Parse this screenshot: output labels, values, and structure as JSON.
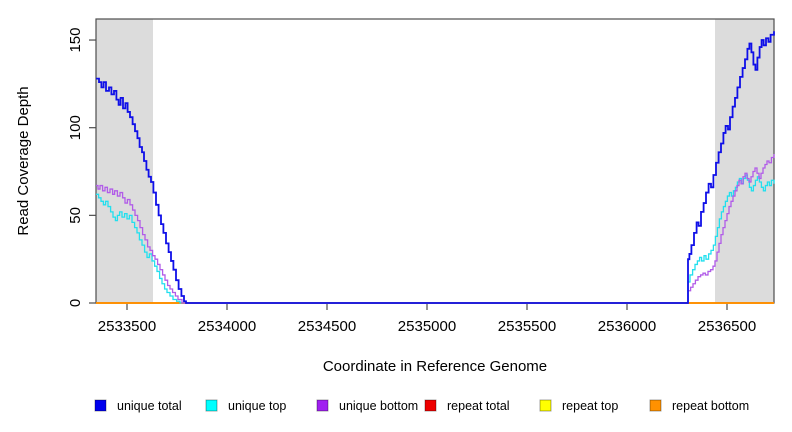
{
  "figure": {
    "background": "#ffffff",
    "frame_color": "#4d4d4d",
    "band_color": "#dcdcdc"
  },
  "chart_data": {
    "type": "line",
    "line_style": "step",
    "title": "",
    "xlabel": "Coordinate in Reference Genome",
    "ylabel": "Read Coverage Depth",
    "xlim": [
      2533345,
      2536735
    ],
    "ylim": [
      0,
      162
    ],
    "x_ticks": [
      2533500,
      2534000,
      2534500,
      2535000,
      2535500,
      2536000,
      2536500
    ],
    "y_ticks": [
      0,
      50,
      100,
      150
    ],
    "grid": false,
    "legend_position": "bottom",
    "highlight_regions": [
      {
        "x0": 2533345,
        "x1": 2533630,
        "color": "#dcdcdc"
      },
      {
        "x0": 2536440,
        "x1": 2536735,
        "color": "#dcdcdc"
      }
    ],
    "series": [
      {
        "name": "repeat total",
        "color": "#ee0000",
        "width": 1.5,
        "points": [
          [
            2533345,
            0
          ],
          [
            2536735,
            0
          ]
        ]
      },
      {
        "name": "repeat top",
        "color": "#ffff00",
        "width": 1.5,
        "points": [
          [
            2533345,
            0
          ],
          [
            2536735,
            0
          ]
        ]
      },
      {
        "name": "repeat bottom",
        "color": "#ff8c00",
        "width": 1.8,
        "points": [
          [
            2533345,
            0
          ],
          [
            2536735,
            0
          ]
        ]
      },
      {
        "name": "unique top",
        "color": "#22dfee",
        "width": 1.3,
        "points": [
          [
            2533345,
            62
          ],
          [
            2533358,
            60
          ],
          [
            2533370,
            58
          ],
          [
            2533382,
            56
          ],
          [
            2533393,
            58
          ],
          [
            2533405,
            55
          ],
          [
            2533418,
            52
          ],
          [
            2533430,
            49
          ],
          [
            2533442,
            47
          ],
          [
            2533452,
            50
          ],
          [
            2533463,
            52
          ],
          [
            2533475,
            49
          ],
          [
            2533488,
            51
          ],
          [
            2533500,
            48
          ],
          [
            2533512,
            50
          ],
          [
            2533525,
            46
          ],
          [
            2533538,
            43
          ],
          [
            2533550,
            40
          ],
          [
            2533562,
            36
          ],
          [
            2533575,
            33
          ],
          [
            2533588,
            29
          ],
          [
            2533600,
            26
          ],
          [
            2533612,
            28
          ],
          [
            2533625,
            24
          ],
          [
            2533638,
            21
          ],
          [
            2533650,
            18
          ],
          [
            2533663,
            14
          ],
          [
            2533675,
            11
          ],
          [
            2533688,
            8
          ],
          [
            2533700,
            6
          ],
          [
            2533715,
            4
          ],
          [
            2533730,
            2
          ],
          [
            2533748,
            1
          ],
          [
            2533765,
            0
          ],
          [
            2536305,
            0
          ],
          [
            2536305,
            12
          ],
          [
            2536315,
            16
          ],
          [
            2536328,
            19
          ],
          [
            2536340,
            22
          ],
          [
            2536352,
            24
          ],
          [
            2536363,
            26
          ],
          [
            2536373,
            24
          ],
          [
            2536385,
            27
          ],
          [
            2536395,
            25
          ],
          [
            2536408,
            28
          ],
          [
            2536420,
            30
          ],
          [
            2536432,
            33
          ],
          [
            2536442,
            38
          ],
          [
            2536452,
            43
          ],
          [
            2536462,
            48
          ],
          [
            2536472,
            52
          ],
          [
            2536482,
            55
          ],
          [
            2536492,
            58
          ],
          [
            2536502,
            61
          ],
          [
            2536512,
            63
          ],
          [
            2536522,
            61
          ],
          [
            2536532,
            64
          ],
          [
            2536542,
            66
          ],
          [
            2536552,
            69
          ],
          [
            2536562,
            71
          ],
          [
            2536572,
            68
          ],
          [
            2536582,
            71
          ],
          [
            2536592,
            73
          ],
          [
            2536602,
            70
          ],
          [
            2536612,
            66
          ],
          [
            2536622,
            64
          ],
          [
            2536632,
            67
          ],
          [
            2536642,
            70
          ],
          [
            2536652,
            72
          ],
          [
            2536662,
            69
          ],
          [
            2536672,
            66
          ],
          [
            2536682,
            64
          ],
          [
            2536692,
            67
          ],
          [
            2536702,
            69
          ],
          [
            2536712,
            67
          ],
          [
            2536722,
            70
          ],
          [
            2536735,
            68
          ]
        ]
      },
      {
        "name": "unique bottom",
        "color": "#b15ce8",
        "width": 1.3,
        "points": [
          [
            2533345,
            67
          ],
          [
            2533355,
            65
          ],
          [
            2533365,
            67
          ],
          [
            2533378,
            64
          ],
          [
            2533390,
            66
          ],
          [
            2533402,
            63
          ],
          [
            2533415,
            65
          ],
          [
            2533428,
            62
          ],
          [
            2533438,
            64
          ],
          [
            2533452,
            61
          ],
          [
            2533465,
            63
          ],
          [
            2533478,
            60
          ],
          [
            2533490,
            57
          ],
          [
            2533502,
            59
          ],
          [
            2533515,
            56
          ],
          [
            2533528,
            53
          ],
          [
            2533540,
            50
          ],
          [
            2533553,
            47
          ],
          [
            2533565,
            43
          ],
          [
            2533578,
            39
          ],
          [
            2533590,
            36
          ],
          [
            2533603,
            32
          ],
          [
            2533615,
            30
          ],
          [
            2533628,
            27
          ],
          [
            2533640,
            25
          ],
          [
            2533653,
            22
          ],
          [
            2533665,
            19
          ],
          [
            2533678,
            16
          ],
          [
            2533690,
            13
          ],
          [
            2533703,
            10
          ],
          [
            2533715,
            8
          ],
          [
            2533728,
            6
          ],
          [
            2533742,
            4
          ],
          [
            2533755,
            2
          ],
          [
            2533775,
            0
          ],
          [
            2536305,
            0
          ],
          [
            2536305,
            7
          ],
          [
            2536318,
            9
          ],
          [
            2536330,
            11
          ],
          [
            2536342,
            13
          ],
          [
            2536355,
            15
          ],
          [
            2536368,
            16
          ],
          [
            2536380,
            17
          ],
          [
            2536392,
            16
          ],
          [
            2536405,
            18
          ],
          [
            2536418,
            19
          ],
          [
            2536430,
            21
          ],
          [
            2536440,
            24
          ],
          [
            2536450,
            29
          ],
          [
            2536460,
            34
          ],
          [
            2536470,
            39
          ],
          [
            2536480,
            43
          ],
          [
            2536490,
            47
          ],
          [
            2536500,
            51
          ],
          [
            2536510,
            55
          ],
          [
            2536520,
            58
          ],
          [
            2536530,
            61
          ],
          [
            2536540,
            64
          ],
          [
            2536550,
            67
          ],
          [
            2536560,
            70
          ],
          [
            2536570,
            68
          ],
          [
            2536580,
            72
          ],
          [
            2536590,
            74
          ],
          [
            2536600,
            71
          ],
          [
            2536610,
            69
          ],
          [
            2536620,
            72
          ],
          [
            2536630,
            75
          ],
          [
            2536640,
            77
          ],
          [
            2536650,
            74
          ],
          [
            2536660,
            71
          ],
          [
            2536670,
            74
          ],
          [
            2536680,
            77
          ],
          [
            2536690,
            79
          ],
          [
            2536700,
            81
          ],
          [
            2536710,
            80
          ],
          [
            2536722,
            83
          ],
          [
            2536735,
            85
          ]
        ]
      },
      {
        "name": "unique total",
        "color": "#0f0fe8",
        "width": 1.8,
        "points": [
          [
            2533345,
            128
          ],
          [
            2533360,
            126
          ],
          [
            2533372,
            123
          ],
          [
            2533383,
            126
          ],
          [
            2533395,
            121
          ],
          [
            2533410,
            123
          ],
          [
            2533422,
            119
          ],
          [
            2533435,
            121
          ],
          [
            2533447,
            116
          ],
          [
            2533458,
            113
          ],
          [
            2533468,
            117
          ],
          [
            2533480,
            111
          ],
          [
            2533492,
            114
          ],
          [
            2533503,
            109
          ],
          [
            2533515,
            106
          ],
          [
            2533528,
            102
          ],
          [
            2533540,
            98
          ],
          [
            2533552,
            94
          ],
          [
            2533563,
            89
          ],
          [
            2533575,
            86
          ],
          [
            2533585,
            81
          ],
          [
            2533597,
            76
          ],
          [
            2533608,
            72
          ],
          [
            2533620,
            69
          ],
          [
            2533632,
            63
          ],
          [
            2533645,
            56
          ],
          [
            2533658,
            50
          ],
          [
            2533670,
            45
          ],
          [
            2533682,
            40
          ],
          [
            2533695,
            34
          ],
          [
            2533708,
            29
          ],
          [
            2533720,
            24
          ],
          [
            2533732,
            19
          ],
          [
            2533745,
            13
          ],
          [
            2533758,
            8
          ],
          [
            2533772,
            4
          ],
          [
            2533785,
            1
          ],
          [
            2533795,
            0
          ],
          [
            2536305,
            0
          ],
          [
            2536305,
            25
          ],
          [
            2536312,
            28
          ],
          [
            2536322,
            33
          ],
          [
            2536335,
            40
          ],
          [
            2536348,
            46
          ],
          [
            2536358,
            44
          ],
          [
            2536370,
            52
          ],
          [
            2536383,
            57
          ],
          [
            2536395,
            63
          ],
          [
            2536408,
            68
          ],
          [
            2536420,
            66
          ],
          [
            2536432,
            73
          ],
          [
            2536445,
            80
          ],
          [
            2536458,
            86
          ],
          [
            2536470,
            91
          ],
          [
            2536482,
            97
          ],
          [
            2536493,
            101
          ],
          [
            2536505,
            99
          ],
          [
            2536515,
            106
          ],
          [
            2536528,
            112
          ],
          [
            2536540,
            117
          ],
          [
            2536552,
            123
          ],
          [
            2536565,
            129
          ],
          [
            2536578,
            134
          ],
          [
            2536590,
            139
          ],
          [
            2536602,
            145
          ],
          [
            2536612,
            148
          ],
          [
            2536622,
            143
          ],
          [
            2536632,
            136
          ],
          [
            2536642,
            133
          ],
          [
            2536652,
            140
          ],
          [
            2536663,
            146
          ],
          [
            2536673,
            150
          ],
          [
            2536683,
            147
          ],
          [
            2536695,
            151
          ],
          [
            2536707,
            149
          ],
          [
            2536718,
            153
          ],
          [
            2536735,
            155
          ]
        ]
      }
    ],
    "legend": [
      {
        "label": "unique total",
        "color": "#0000ee"
      },
      {
        "label": "unique top",
        "color": "#00ffff"
      },
      {
        "label": "unique bottom",
        "color": "#a020f0"
      },
      {
        "label": "repeat total",
        "color": "#ee0000"
      },
      {
        "label": "repeat top",
        "color": "#ffff00"
      },
      {
        "label": "repeat bottom",
        "color": "#ff9100"
      }
    ]
  }
}
